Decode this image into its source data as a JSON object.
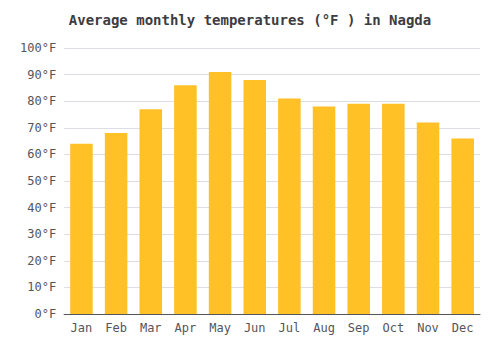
{
  "chart_data": {
    "type": "bar",
    "title": "Average monthly temperatures (°F ) in Nagda",
    "categories": [
      "Jan",
      "Feb",
      "Mar",
      "Apr",
      "May",
      "Jun",
      "Jul",
      "Aug",
      "Sep",
      "Oct",
      "Nov",
      "Dec"
    ],
    "values": [
      64,
      68,
      77,
      86,
      91,
      88,
      81,
      78,
      79,
      79,
      72,
      66
    ],
    "color": "#FFC125",
    "ylim": [
      0,
      100
    ],
    "yticks": [
      {
        "value": 0,
        "label": "0°F"
      },
      {
        "value": 10,
        "label": "10°F"
      },
      {
        "value": 20,
        "label": "20°F"
      },
      {
        "value": 30,
        "label": "30°F"
      },
      {
        "value": 40,
        "label": "40°F"
      },
      {
        "value": 50,
        "label": "50°F"
      },
      {
        "value": 60,
        "label": "60°F"
      },
      {
        "value": 70,
        "label": "70°F"
      },
      {
        "value": 80,
        "label": "80°F"
      },
      {
        "value": 90,
        "label": "90°F"
      },
      {
        "value": 100,
        "label": "100°F"
      }
    ],
    "grid": true
  }
}
